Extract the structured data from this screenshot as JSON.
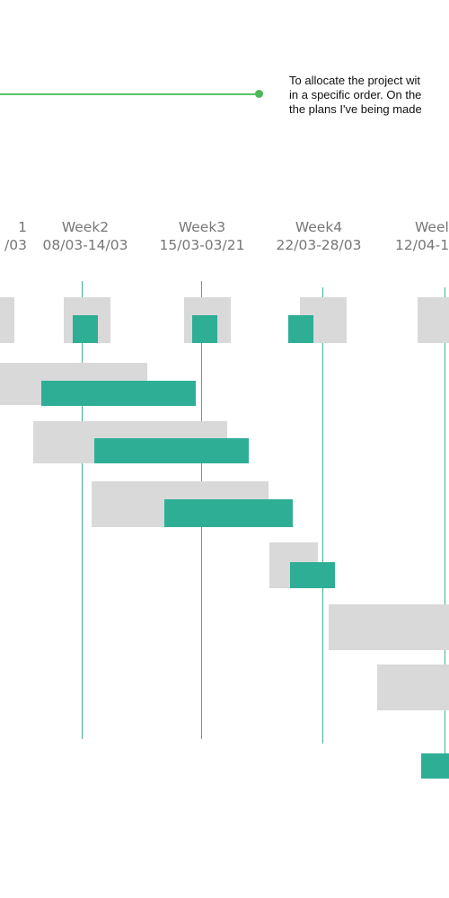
{
  "note": {
    "lines": [
      "To allocate the project wit",
      "in a specific order. On the",
      "the plans I've being made"
    ]
  },
  "weeks": [
    {
      "label": "1",
      "range": "/03"
    },
    {
      "label": "Week2",
      "range": "08/03-14/03"
    },
    {
      "label": "Week3",
      "range": "15/03-03/21"
    },
    {
      "label": "Week4",
      "range": "22/03-28/03"
    },
    {
      "label": "Weel",
      "range": "12/04-1"
    }
  ],
  "colors": {
    "planned": "#d9d9d9",
    "actual": "#2fae96",
    "callout": "#4cb85a",
    "gridline": "#3fae95"
  }
}
